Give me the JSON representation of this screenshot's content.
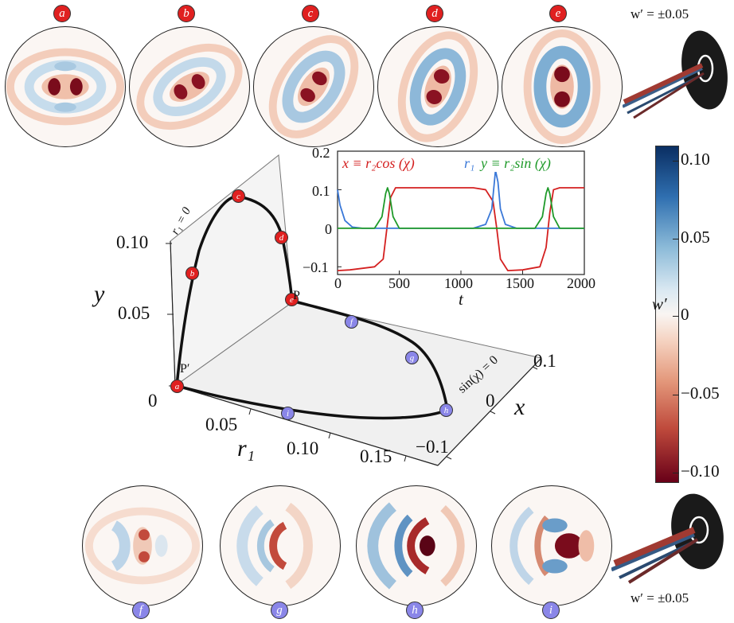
{
  "top_row": {
    "badges": [
      "a",
      "b",
      "c",
      "d",
      "e"
    ],
    "amplitude_label": "w′ = ±0.05"
  },
  "bottom_row": {
    "badges": [
      "f",
      "g",
      "h",
      "i"
    ],
    "amplitude_label": "w′ = ±0.05"
  },
  "inset": {
    "legend_x": "x ≡ r₂cos (χ)",
    "legend_r1": "r₁",
    "legend_y": "y ≡ r₂sin (χ)",
    "xlabel": "t",
    "yticks": [
      "0.2",
      "0.1",
      "0",
      "−0.1"
    ],
    "xticks": [
      "0",
      "500",
      "1000",
      "1500",
      "2000"
    ]
  },
  "plot3d": {
    "ylabel": "y",
    "r1label": "r₁",
    "xlabel": "x",
    "yticks": [
      "0.10",
      "0.05",
      "0"
    ],
    "r1ticks": [
      "0.05",
      "0.10",
      "0.15"
    ],
    "xticks": [
      "0.1",
      "0",
      "−0.1"
    ],
    "plane_r1": "r₁ = 0",
    "plane_sin": "sin(χ) = 0",
    "point_P": "P",
    "point_Pprime": "P′",
    "red_points": [
      "a",
      "b",
      "c",
      "d",
      "e"
    ],
    "blue_points": [
      "f",
      "g",
      "h",
      "i"
    ]
  },
  "colorbar": {
    "label": "w′",
    "ticks": [
      "0.10",
      "0.05",
      "0",
      "−0.05",
      "−0.10"
    ],
    "colors": [
      "#0a2e62",
      "#2f6fb0",
      "#f9f5f2",
      "#e3977a",
      "#680018"
    ]
  },
  "chart_data": {
    "type": "line",
    "xlabel": "t",
    "ylabel": "",
    "xlim": [
      0,
      2000
    ],
    "ylim": [
      -0.12,
      0.2
    ],
    "series": [
      {
        "name": "x ≡ r₂cos (χ)",
        "color": "#d42020",
        "x": [
          0,
          100,
          300,
          370,
          400,
          430,
          470,
          600,
          1100,
          1200,
          1260,
          1290,
          1320,
          1380,
          1500,
          1640,
          1690,
          1720,
          1750,
          1800,
          2000
        ],
        "values": [
          -0.11,
          -0.108,
          -0.1,
          -0.08,
          0.0,
          0.08,
          0.105,
          0.105,
          0.105,
          0.1,
          0.07,
          0.0,
          -0.08,
          -0.11,
          -0.108,
          -0.1,
          -0.05,
          0.04,
          0.1,
          0.105,
          0.105
        ]
      },
      {
        "name": "r₁",
        "color": "#3a78d8",
        "x": [
          0,
          20,
          60,
          120,
          200,
          1100,
          1200,
          1250,
          1280,
          1300,
          1320,
          1360,
          1450,
          2000
        ],
        "values": [
          0.1,
          0.06,
          0.02,
          0.003,
          0.0,
          0.0,
          0.01,
          0.05,
          0.15,
          0.12,
          0.05,
          0.01,
          0.0,
          0.0
        ]
      },
      {
        "name": "y ≡ r₂sin (χ)",
        "color": "#1f9a2a",
        "x": [
          0,
          300,
          360,
          390,
          405,
          420,
          450,
          500,
          1600,
          1660,
          1690,
          1705,
          1720,
          1750,
          1800,
          2000
        ],
        "values": [
          0.0,
          0.0,
          0.03,
          0.09,
          0.105,
          0.09,
          0.03,
          0.0,
          0.0,
          0.03,
          0.09,
          0.105,
          0.09,
          0.03,
          0.0,
          0.0
        ]
      }
    ]
  }
}
